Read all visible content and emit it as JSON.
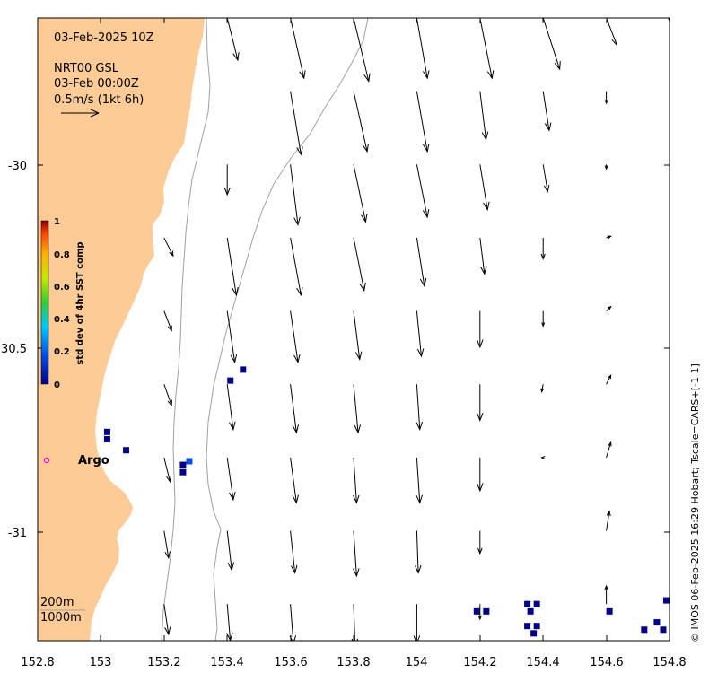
{
  "header": {
    "datetime": "03-Feb-2025 10Z",
    "product": "NRT00 GSL",
    "product_time": "03-Feb 00:00Z",
    "scale_label": "0.5m/s (1kt 6h)"
  },
  "axes": {
    "x_ticks": [
      "152.8",
      "153",
      "153.2",
      "153.4",
      "153.6",
      "153.8",
      "154",
      "154.2",
      "154.4",
      "154.6",
      "154.8"
    ],
    "y_ticks": [
      "-30",
      "30.5",
      "-31"
    ]
  },
  "colorbar": {
    "title": "std dev of 4hr SST comp",
    "ticks": [
      "1",
      "0.8",
      "0.6",
      "0.4",
      "0.2",
      "0"
    ],
    "colors": [
      "#8b0000",
      "#ff4500",
      "#ffd700",
      "#32cd32",
      "#00bfff",
      "#00008b"
    ]
  },
  "argo": {
    "label": "Argo",
    "marker_color": "#ff00ff"
  },
  "isobaths": {
    "shallow": "200m",
    "deep": "1000m",
    "color": "#a0a0a0"
  },
  "land_color": "#fdcb96",
  "credit": "© IMOS 06-Feb-2025 16:29 Hobart; Tscale=CARS+[-1 1]",
  "chart_data": {
    "type": "map",
    "xlim": [
      152.8,
      154.8
    ],
    "ylim": [
      -31.3,
      -29.6
    ],
    "current_vectors": {
      "units": "0.5 m/s reference arrow",
      "lon": [
        153.0,
        153.2,
        153.4,
        153.6,
        153.8,
        154.0,
        154.2,
        154.4,
        154.6,
        154.8
      ],
      "lat": [
        -29.6,
        -29.8,
        -30.0,
        -30.2,
        -30.4,
        -30.6,
        -30.8,
        -31.0,
        -31.2
      ],
      "u": [
        [
          null,
          null,
          0.07,
          0.09,
          0.1,
          0.07,
          0.08,
          0.11,
          0.07,
          0.0
        ],
        [
          null,
          null,
          null,
          0.07,
          0.09,
          0.07,
          0.04,
          0.04,
          0.0,
          null
        ],
        [
          null,
          null,
          0.0,
          0.05,
          0.08,
          0.07,
          0.05,
          0.03,
          0.0,
          null
        ],
        [
          null,
          0.06,
          0.06,
          0.07,
          0.07,
          0.05,
          0.03,
          0.0,
          0.03,
          null
        ],
        [
          null,
          0.05,
          0.05,
          0.05,
          0.04,
          0.03,
          0.0,
          0.0,
          0.03,
          null
        ],
        [
          null,
          0.05,
          0.04,
          0.04,
          0.03,
          0.02,
          0.0,
          -0.01,
          0.03,
          null
        ],
        [
          null,
          0.04,
          0.04,
          0.04,
          0.02,
          0.02,
          0.0,
          -0.01,
          0.03,
          null
        ],
        [
          null,
          0.03,
          0.03,
          0.03,
          0.02,
          0.01,
          0.0,
          0.0,
          0.02,
          null
        ],
        [
          null,
          0.03,
          0.02,
          0.02,
          0.01,
          0.0,
          0.0,
          0.0,
          0.0,
          null
        ]
      ],
      "v": [
        [
          null,
          null,
          -0.28,
          -0.4,
          -0.42,
          -0.4,
          -0.4,
          -0.34,
          -0.18,
          -0.02
        ],
        [
          null,
          null,
          null,
          -0.42,
          -0.4,
          -0.4,
          -0.32,
          -0.26,
          -0.08,
          null
        ],
        [
          null,
          null,
          -0.2,
          -0.4,
          -0.38,
          -0.35,
          -0.3,
          -0.18,
          -0.03,
          null
        ],
        [
          null,
          -0.12,
          -0.38,
          -0.38,
          -0.35,
          -0.32,
          -0.24,
          -0.14,
          0.01,
          null
        ],
        [
          null,
          -0.13,
          -0.34,
          -0.34,
          -0.32,
          -0.3,
          -0.24,
          -0.1,
          0.03,
          null
        ],
        [
          null,
          -0.14,
          -0.3,
          -0.32,
          -0.32,
          -0.3,
          -0.24,
          -0.05,
          0.06,
          null
        ],
        [
          null,
          -0.16,
          -0.28,
          -0.3,
          -0.3,
          -0.3,
          -0.22,
          0.0,
          0.1,
          null
        ],
        [
          null,
          -0.18,
          -0.26,
          -0.28,
          -0.3,
          -0.28,
          -0.15,
          0.0,
          0.13,
          null
        ],
        [
          null,
          -0.2,
          -0.24,
          -0.26,
          -0.28,
          -0.26,
          -0.1,
          0.0,
          0.12,
          null
        ]
      ]
    },
    "sst_std_cells": [
      {
        "lon": 153.02,
        "lat": -30.75,
        "value": 0.05
      },
      {
        "lon": 153.02,
        "lat": -30.73,
        "value": 0.05
      },
      {
        "lon": 153.08,
        "lat": -30.78,
        "value": 0.12
      },
      {
        "lon": 153.26,
        "lat": -30.82,
        "value": 0.1
      },
      {
        "lon": 153.28,
        "lat": -30.81,
        "value": 0.18
      },
      {
        "lon": 153.26,
        "lat": -30.84,
        "value": 0.06
      },
      {
        "lon": 153.41,
        "lat": -30.59,
        "value": 0.06
      },
      {
        "lon": 153.45,
        "lat": -30.56,
        "value": 0.08
      },
      {
        "lon": 154.19,
        "lat": -31.22,
        "value": 0.06
      },
      {
        "lon": 154.22,
        "lat": -31.22,
        "value": 0.05
      },
      {
        "lon": 154.35,
        "lat": -31.2,
        "value": 0.06
      },
      {
        "lon": 154.38,
        "lat": -31.2,
        "value": 0.05
      },
      {
        "lon": 154.36,
        "lat": -31.22,
        "value": 0.06
      },
      {
        "lon": 154.35,
        "lat": -31.26,
        "value": 0.06
      },
      {
        "lon": 154.38,
        "lat": -31.26,
        "value": 0.05
      },
      {
        "lon": 154.37,
        "lat": -31.28,
        "value": 0.06
      },
      {
        "lon": 154.61,
        "lat": -31.22,
        "value": 0.06
      },
      {
        "lon": 154.79,
        "lat": -31.19,
        "value": 0.08
      },
      {
        "lon": 154.72,
        "lat": -31.27,
        "value": 0.05
      },
      {
        "lon": 154.76,
        "lat": -31.25,
        "value": 0.04
      },
      {
        "lon": 154.78,
        "lat": -31.27,
        "value": 0.04
      }
    ],
    "argo_float": {
      "lon": 152.83,
      "lat": -30.78
    }
  }
}
